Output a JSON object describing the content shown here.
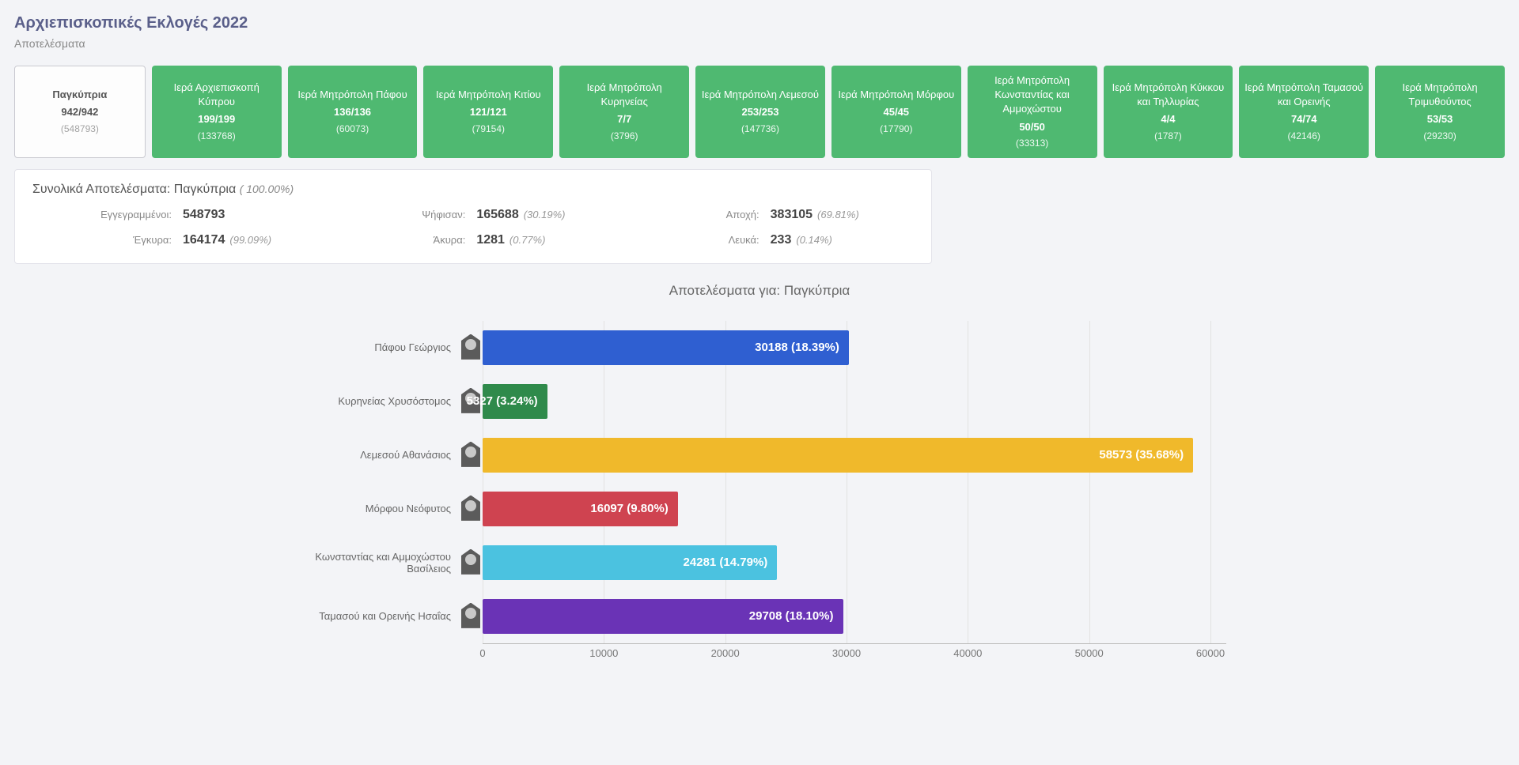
{
  "header": {
    "title": "Αρχιεπισκοπικές Εκλογές 2022",
    "subtitle": "Αποτελέσματα"
  },
  "regions": [
    {
      "name": "Παγκύπρια",
      "count": "942/942",
      "total": "(548793)",
      "active": true
    },
    {
      "name": "Ιερά Αρχιεπισκοπή Κύπρου",
      "count": "199/199",
      "total": "(133768)",
      "active": false
    },
    {
      "name": "Ιερά Μητρόπολη Πάφου",
      "count": "136/136",
      "total": "(60073)",
      "active": false
    },
    {
      "name": "Ιερά Μητρόπολη Κιτίου",
      "count": "121/121",
      "total": "(79154)",
      "active": false
    },
    {
      "name": "Ιερά Μητρόπολη Κυρηνείας",
      "count": "7/7",
      "total": "(3796)",
      "active": false
    },
    {
      "name": "Ιερά Μητρόπολη Λεμεσού",
      "count": "253/253",
      "total": "(147736)",
      "active": false
    },
    {
      "name": "Ιερά Μητρόπολη Μόρφου",
      "count": "45/45",
      "total": "(17790)",
      "active": false
    },
    {
      "name": "Ιερά Μητρόπολη Κωνσταντίας και Αμμοχώστου",
      "count": "50/50",
      "total": "(33313)",
      "active": false
    },
    {
      "name": "Ιερά Μητρόπολη Κύκκου και Τηλλυρίας",
      "count": "4/4",
      "total": "(1787)",
      "active": false
    },
    {
      "name": "Ιερά Μητρόπολη Ταμασού και Ορεινής",
      "count": "74/74",
      "total": "(42146)",
      "active": false
    },
    {
      "name": "Ιερά Μητρόπολη Τριμυθούντος",
      "count": "53/53",
      "total": "(29230)",
      "active": false
    }
  ],
  "summary": {
    "title_prefix": "Συνολικά Αποτελέσματα: ",
    "title_region": "Παγκύπρια",
    "title_pct": "( 100.00%)",
    "stats": {
      "registered_label": "Εγγεγραμμένοι:",
      "registered_val": "548793",
      "voted_label": "Ψήφισαν:",
      "voted_val": "165688",
      "voted_pct": "(30.19%)",
      "abstain_label": "Αποχή:",
      "abstain_val": "383105",
      "abstain_pct": "(69.81%)",
      "valid_label": "Έγκυρα:",
      "valid_val": "164174",
      "valid_pct": "(99.09%)",
      "invalid_label": "Άκυρα:",
      "invalid_val": "1281",
      "invalid_pct": "(0.77%)",
      "blank_label": "Λευκά:",
      "blank_val": "233",
      "blank_pct": "(0.14%)"
    }
  },
  "chart": {
    "title": "Αποτελέσματα για: Παγκύπρια",
    "xmax": 60000,
    "xticks": [
      0,
      10000,
      20000,
      30000,
      40000,
      50000,
      60000
    ],
    "bar_colors": {
      "blue": "#2f5fd1",
      "green": "#2f8a4b",
      "yellow": "#f0b92b",
      "red": "#cf4350",
      "cyan": "#4bc2e0",
      "purple": "#6a33b6"
    },
    "candidates": [
      {
        "name": "Πάφου Γεώργιος",
        "value": 30188,
        "label": "30188 (18.39%)",
        "color": "blue"
      },
      {
        "name": "Κυρηνείας Χρυσόστομος",
        "value": 5327,
        "label": "5327 (3.24%)",
        "color": "green"
      },
      {
        "name": "Λεμεσού Αθανάσιος",
        "value": 58573,
        "label": "58573 (35.68%)",
        "color": "yellow"
      },
      {
        "name": "Μόρφου Νεόφυτος",
        "value": 16097,
        "label": "16097 (9.80%)",
        "color": "red"
      },
      {
        "name": "Κωνσταντίας και Αμμοχώστου Βασίλειος",
        "value": 24281,
        "label": "24281 (14.79%)",
        "color": "cyan"
      },
      {
        "name": "Ταμασού και Ορεινής Ησαΐας",
        "value": 29708,
        "label": "29708 (18.10%)",
        "color": "purple"
      }
    ]
  }
}
